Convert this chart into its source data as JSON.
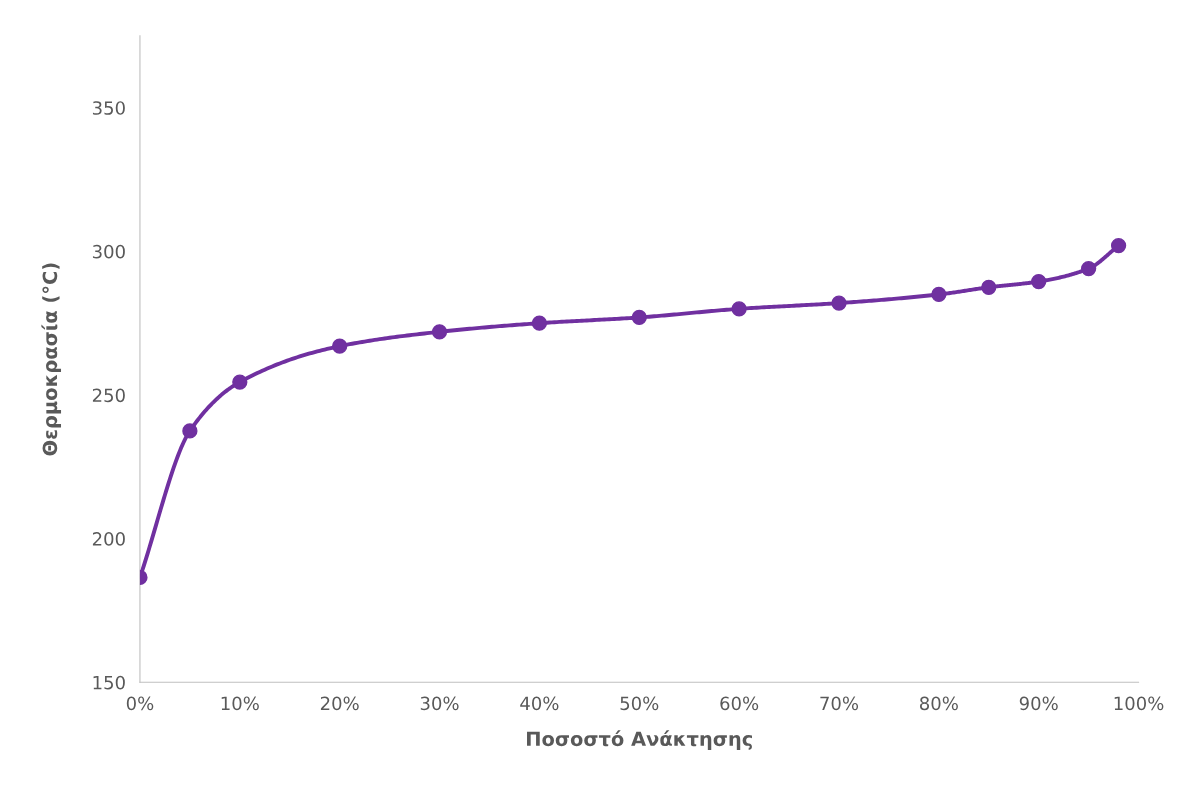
{
  "chart_data": {
    "type": "line",
    "xlabel": "Ποσοστό Ανάκτησης",
    "ylabel": "Θερμοκρασία (°C)",
    "x": [
      0,
      5,
      10,
      20,
      30,
      40,
      50,
      60,
      70,
      80,
      85,
      90,
      95,
      98
    ],
    "series": [
      {
        "color": "#7030a0",
        "values": [
          186.5,
          237.5,
          254.5,
          267,
          272,
          275,
          277,
          280,
          282,
          285,
          287.5,
          289.5,
          294,
          302
        ]
      }
    ],
    "xlim": [
      0,
      100
    ],
    "xticks": [
      {
        "value": 0,
        "label": "0%"
      },
      {
        "value": 10,
        "label": "10%"
      },
      {
        "value": 20,
        "label": "20%"
      },
      {
        "value": 30,
        "label": "30%"
      },
      {
        "value": 40,
        "label": "40%"
      },
      {
        "value": 50,
        "label": "50%"
      },
      {
        "value": 60,
        "label": "60%"
      },
      {
        "value": 70,
        "label": "70%"
      },
      {
        "value": 80,
        "label": "80%"
      },
      {
        "value": 90,
        "label": "90%"
      },
      {
        "value": 100,
        "label": "100%"
      }
    ],
    "ylim": [
      150,
      375
    ],
    "yticks": [
      150,
      200,
      250,
      300,
      350
    ],
    "grid": false,
    "legend": false,
    "marker": "circle",
    "line_style": "solid"
  }
}
